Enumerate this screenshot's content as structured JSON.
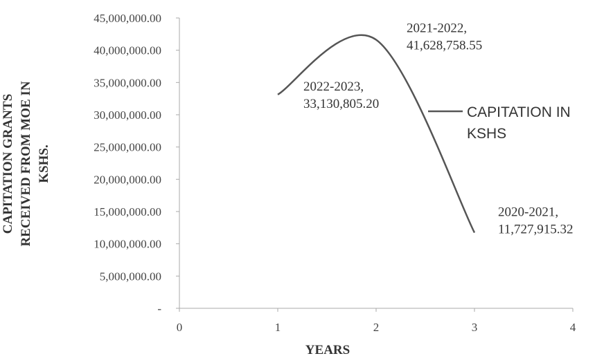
{
  "chart_data": {
    "type": "line",
    "title": "",
    "xlabel": "YEARS",
    "ylabel_lines": [
      "CAPITATION GRANTS",
      "RECEIVED FROM MOE IN",
      "KSHS."
    ],
    "xlim": [
      0,
      4
    ],
    "ylim": [
      0,
      45000000
    ],
    "x_ticks": [
      {
        "value": 0,
        "label": "0"
      },
      {
        "value": 1,
        "label": "1"
      },
      {
        "value": 2,
        "label": "2"
      },
      {
        "value": 3,
        "label": "3"
      },
      {
        "value": 4,
        "label": "4"
      }
    ],
    "y_ticks": [
      {
        "value": 0,
        "label": "-"
      },
      {
        "value": 5000000,
        "label": "5,000,000.00"
      },
      {
        "value": 10000000,
        "label": "10,000,000.00"
      },
      {
        "value": 15000000,
        "label": "15,000,000.00"
      },
      {
        "value": 20000000,
        "label": "20,000,000.00"
      },
      {
        "value": 25000000,
        "label": "25,000,000.00"
      },
      {
        "value": 30000000,
        "label": "30,000,000.00"
      },
      {
        "value": 35000000,
        "label": "35,000,000.00"
      },
      {
        "value": 40000000,
        "label": "40,000,000.00"
      },
      {
        "value": 45000000,
        "label": "45,000,000.00"
      }
    ],
    "grid": false,
    "smooth": true,
    "legend_position": "right",
    "series": [
      {
        "name": "CAPITATION IN KSHS",
        "name_lines": [
          "CAPITATION IN",
          "KSHS"
        ],
        "color": "#555555",
        "points": [
          {
            "x": 1,
            "y": 33130805.2,
            "label_lines": [
              "2022-2023,",
              "33,130,805.20"
            ]
          },
          {
            "x": 2,
            "y": 41628758.55,
            "label_lines": [
              "2021-2022,",
              "41,628,758.55"
            ]
          },
          {
            "x": 3,
            "y": 11727915.32,
            "label_lines": [
              "2020-2021,",
              "11,727,915.32"
            ]
          }
        ]
      }
    ]
  }
}
